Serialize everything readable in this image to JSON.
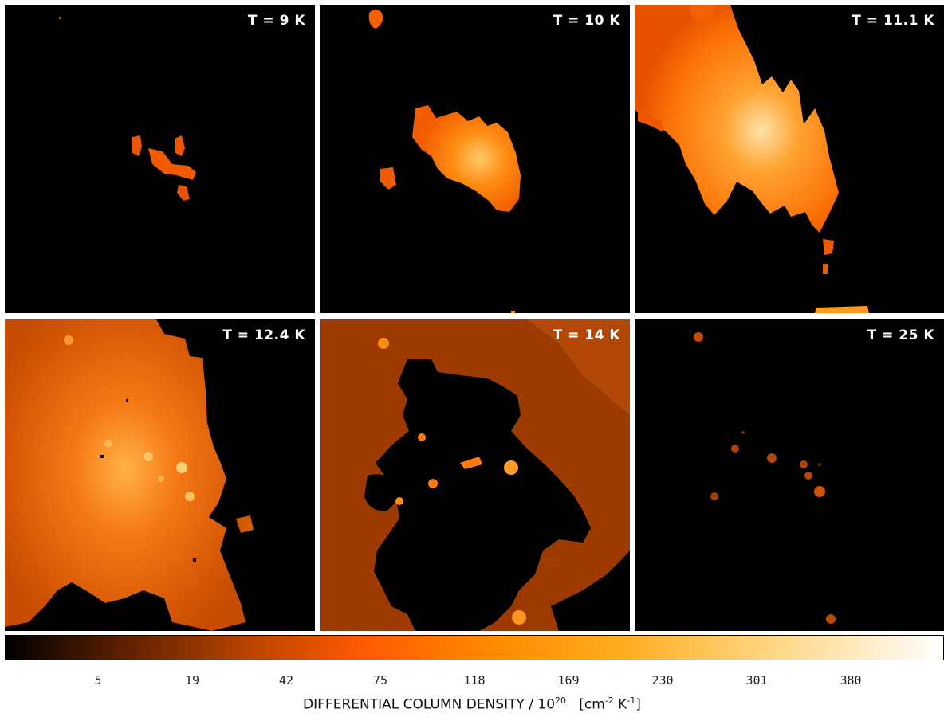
{
  "panels": [
    {
      "label": "T = 9 K"
    },
    {
      "label": "T = 10 K"
    },
    {
      "label": "T = 11.1 K"
    },
    {
      "label": "T = 12.4 K"
    },
    {
      "label": "T = 14 K"
    },
    {
      "label": "T = 25 K"
    }
  ],
  "colorbar": {
    "ticks": [
      "5",
      "19",
      "42",
      "75",
      "118",
      "169",
      "230",
      "301",
      "380"
    ],
    "label_main": "DIFFERENTIAL COLUMN DENSITY / 10",
    "label_exp": "20",
    "label_unit_open": "[cm",
    "label_unit_exp1": "-2",
    "label_unit_mid": " K",
    "label_unit_exp2": "-1",
    "label_unit_close": "]",
    "colors": [
      "#000000",
      "#5a1e00",
      "#b84400",
      "#ff5a00",
      "#ff8a00",
      "#ffad22",
      "#ffd785",
      "#ffffff"
    ]
  }
}
